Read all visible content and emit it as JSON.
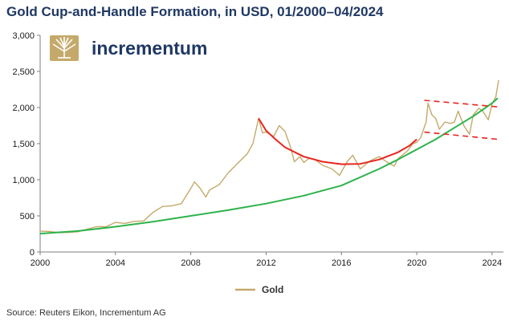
{
  "chart_data": {
    "type": "line",
    "title": "Gold Cup-and-Handle Formation, in USD, 01/2000–04/2024",
    "xlabel": "",
    "ylabel": "",
    "xlim": [
      2000,
      2024.6
    ],
    "ylim": [
      0,
      3000
    ],
    "x_ticks": [
      2000,
      2004,
      2008,
      2012,
      2016,
      2020,
      2024
    ],
    "x_tick_labels": [
      "2000",
      "2004",
      "2008",
      "2012",
      "2016",
      "2020",
      "2024"
    ],
    "y_ticks": [
      0,
      500,
      1000,
      1500,
      2000,
      2500,
      3000
    ],
    "y_tick_labels": [
      "0",
      "500",
      "1,000",
      "1,500",
      "2,000",
      "2,500",
      "3,000"
    ],
    "grid": false,
    "legend_position": "bottom-center",
    "series": [
      {
        "name": "Gold",
        "color": "#c4a96a",
        "points": [
          [
            2000.0,
            288
          ],
          [
            2000.5,
            285
          ],
          [
            2001.0,
            268
          ],
          [
            2001.5,
            270
          ],
          [
            2002.0,
            280
          ],
          [
            2002.5,
            315
          ],
          [
            2003.0,
            350
          ],
          [
            2003.5,
            350
          ],
          [
            2004.0,
            410
          ],
          [
            2004.5,
            395
          ],
          [
            2005.0,
            425
          ],
          [
            2005.5,
            430
          ],
          [
            2006.0,
            550
          ],
          [
            2006.5,
            630
          ],
          [
            2007.0,
            640
          ],
          [
            2007.5,
            670
          ],
          [
            2008.0,
            880
          ],
          [
            2008.2,
            970
          ],
          [
            2008.5,
            880
          ],
          [
            2008.8,
            760
          ],
          [
            2009.0,
            860
          ],
          [
            2009.5,
            930
          ],
          [
            2010.0,
            1100
          ],
          [
            2010.5,
            1230
          ],
          [
            2011.0,
            1360
          ],
          [
            2011.3,
            1500
          ],
          [
            2011.6,
            1850
          ],
          [
            2011.8,
            1650
          ],
          [
            2012.0,
            1660
          ],
          [
            2012.4,
            1600
          ],
          [
            2012.7,
            1750
          ],
          [
            2013.0,
            1670
          ],
          [
            2013.3,
            1450
          ],
          [
            2013.5,
            1250
          ],
          [
            2013.8,
            1320
          ],
          [
            2014.0,
            1240
          ],
          [
            2014.3,
            1300
          ],
          [
            2014.6,
            1280
          ],
          [
            2015.0,
            1200
          ],
          [
            2015.5,
            1150
          ],
          [
            2015.9,
            1060
          ],
          [
            2016.3,
            1250
          ],
          [
            2016.6,
            1340
          ],
          [
            2017.0,
            1150
          ],
          [
            2017.5,
            1260
          ],
          [
            2018.0,
            1320
          ],
          [
            2018.5,
            1230
          ],
          [
            2018.8,
            1190
          ],
          [
            2019.0,
            1290
          ],
          [
            2019.5,
            1400
          ],
          [
            2019.8,
            1500
          ],
          [
            2020.0,
            1520
          ],
          [
            2020.2,
            1580
          ],
          [
            2020.5,
            1800
          ],
          [
            2020.6,
            2060
          ],
          [
            2020.8,
            1900
          ],
          [
            2021.0,
            1850
          ],
          [
            2021.2,
            1700
          ],
          [
            2021.5,
            1800
          ],
          [
            2021.8,
            1780
          ],
          [
            2022.0,
            1800
          ],
          [
            2022.2,
            1950
          ],
          [
            2022.5,
            1750
          ],
          [
            2022.8,
            1630
          ],
          [
            2023.0,
            1900
          ],
          [
            2023.3,
            1990
          ],
          [
            2023.5,
            1950
          ],
          [
            2023.8,
            1830
          ],
          [
            2024.0,
            2050
          ],
          [
            2024.2,
            2150
          ],
          [
            2024.35,
            2380
          ]
        ]
      },
      {
        "name": "",
        "color": "#2db34a",
        "points": [
          [
            2000.0,
            255
          ],
          [
            2002.0,
            290
          ],
          [
            2004.0,
            350
          ],
          [
            2006.0,
            420
          ],
          [
            2008.0,
            500
          ],
          [
            2010.0,
            580
          ],
          [
            2012.0,
            670
          ],
          [
            2014.0,
            780
          ],
          [
            2016.0,
            920
          ],
          [
            2018.0,
            1150
          ],
          [
            2019.0,
            1280
          ],
          [
            2020.0,
            1420
          ],
          [
            2021.0,
            1560
          ],
          [
            2022.0,
            1720
          ],
          [
            2023.0,
            1880
          ],
          [
            2024.0,
            2060
          ],
          [
            2024.3,
            2130
          ]
        ]
      },
      {
        "name": "",
        "color": "#e8251f",
        "points": [
          [
            2011.6,
            1850
          ],
          [
            2012.0,
            1680
          ],
          [
            2012.5,
            1560
          ],
          [
            2013.0,
            1450
          ],
          [
            2014.0,
            1320
          ],
          [
            2015.0,
            1250
          ],
          [
            2016.0,
            1215
          ],
          [
            2017.0,
            1220
          ],
          [
            2018.0,
            1280
          ],
          [
            2019.0,
            1380
          ],
          [
            2019.6,
            1470
          ],
          [
            2020.0,
            1560
          ]
        ]
      },
      {
        "name": "",
        "color": "#e8251f",
        "dashed": true,
        "points": [
          [
            2020.4,
            2100
          ],
          [
            2024.3,
            2010
          ]
        ]
      },
      {
        "name": "",
        "color": "#e8251f",
        "dashed": true,
        "points": [
          [
            2020.4,
            1660
          ],
          [
            2024.3,
            1560
          ]
        ]
      }
    ]
  },
  "brand": {
    "name": "incrementum",
    "logo_color": "#c4a96a"
  },
  "source": "Source: Reuters Eikon, Incrementum AG"
}
